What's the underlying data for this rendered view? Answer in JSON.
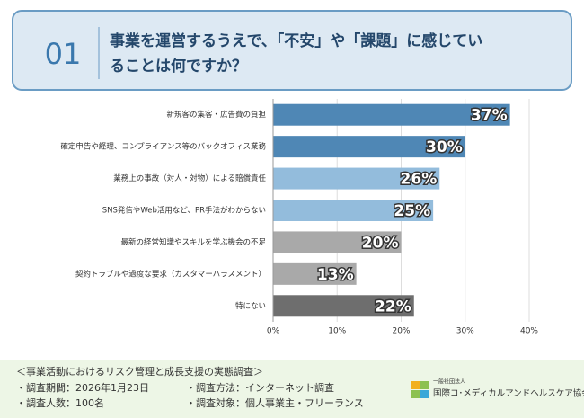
{
  "header": {
    "number": "01",
    "title_lines": [
      "事業を運営するうえで、「不安」や「課題」に感じてい",
      "ることは何ですか？"
    ]
  },
  "chart_data": {
    "type": "hbar",
    "categories": [
      "新規客の集客・広告費の負担",
      "確定申告や経理、コンプライアンス等のバックオフィス業務",
      "業務上の事故（対人・対物）による賠償責任",
      "SNS発信やWeb活用など、PR手法がわからない",
      "最新の経営知識やスキルを学ぶ機会の不足",
      "契約トラブルや過度な要求（カスタマーハラスメント）",
      "特にない"
    ],
    "values": [
      37,
      30,
      26,
      25,
      20,
      13,
      22
    ],
    "value_labels": [
      "37%",
      "30%",
      "26%",
      "25%",
      "20%",
      "13%",
      "22%"
    ],
    "colors": [
      "#4f87b5",
      "#4f87b5",
      "#93bcdc",
      "#93bcdc",
      "#a9a9a9",
      "#a9a9a9",
      "#6e6e6e"
    ],
    "xlim": [
      0,
      40
    ],
    "xticks": [
      {
        "value": 0,
        "label": "0%"
      },
      {
        "value": 10,
        "label": "10%"
      },
      {
        "value": 20,
        "label": "20%"
      },
      {
        "value": 30,
        "label": "30%"
      },
      {
        "value": 40,
        "label": "40%"
      }
    ],
    "grid": true
  },
  "footer": {
    "survey_title": "＜事業活動におけるリスク管理と成長支援の実態調査＞",
    "period": "・調査期間：2026年1月23日",
    "method": "・調査方法：インターネット調査",
    "count": "・調査人数：100名",
    "target": "・調査対象：個人事業主・フリーランス",
    "org_type": "一般社団法人",
    "org_name": "国際コ･メディカルアンドヘルスケア協会"
  }
}
